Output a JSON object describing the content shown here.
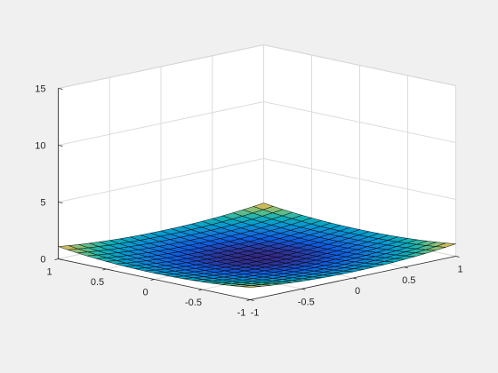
{
  "chart_data": {
    "type": "surface",
    "title": "",
    "xlabel": "",
    "ylabel": "",
    "zlabel": "",
    "function": "z = 0.5 * (exp(x) + exp(-x) + exp(y) + exp(-y)) - 2",
    "x": {
      "min": -1,
      "max": 1,
      "points": 21
    },
    "y": {
      "min": -1,
      "max": 1,
      "points": 21
    },
    "zlim": [
      0,
      15
    ],
    "x_ticks": [
      {
        "value": -1,
        "label": "-1"
      },
      {
        "value": -0.5,
        "label": "-0.5"
      },
      {
        "value": 0,
        "label": "0"
      },
      {
        "value": 0.5,
        "label": "0.5"
      },
      {
        "value": 1,
        "label": "1"
      }
    ],
    "y_ticks": [
      {
        "value": -1,
        "label": "-1"
      },
      {
        "value": -0.5,
        "label": "-0.5"
      },
      {
        "value": 0,
        "label": "0"
      },
      {
        "value": 0.5,
        "label": "0.5"
      },
      {
        "value": 1,
        "label": "1"
      }
    ],
    "z_ticks": [
      {
        "value": 0,
        "label": "0"
      },
      {
        "value": 5,
        "label": "5"
      },
      {
        "value": 10,
        "label": "10"
      },
      {
        "value": 15,
        "label": "15"
      }
    ],
    "grid": true,
    "colormap": "parula",
    "colors": {
      "figure_background": "#f0f0f0",
      "axes_background": "#ffffff",
      "grid": "#dcdcdc",
      "edge": "#000000",
      "text": "#262626"
    }
  }
}
